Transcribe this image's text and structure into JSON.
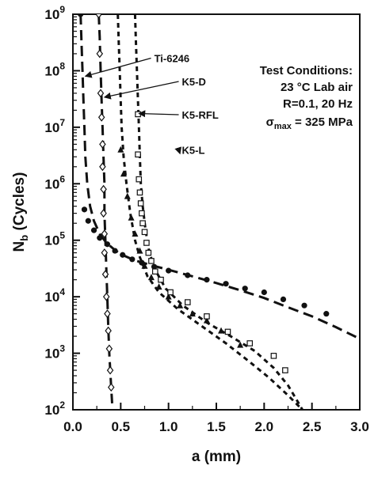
{
  "chart_data": {
    "type": "scatter",
    "xlabel": "a (mm)",
    "ylabel_main": "N",
    "ylabel_sub": "b",
    "ylabel_rest": " (Cycles)",
    "xlim": [
      0.0,
      3.0
    ],
    "ylim": [
      100,
      1000000000
    ],
    "yscale": "log",
    "grid": false,
    "x_ticks": [
      "0.0",
      "0.5",
      "1.0",
      "1.5",
      "2.0",
      "2.5",
      "3.0"
    ],
    "y_ticks": [
      {
        "value": 100,
        "mant": "10",
        "exp": "2"
      },
      {
        "value": 1000,
        "mant": "10",
        "exp": "3"
      },
      {
        "value": 10000,
        "mant": "10",
        "exp": "4"
      },
      {
        "value": 100000,
        "mant": "10",
        "exp": "5"
      },
      {
        "value": 1000000,
        "mant": "10",
        "exp": "6"
      },
      {
        "value": 10000000,
        "mant": "10",
        "exp": "7"
      },
      {
        "value": 100000000,
        "mant": "10",
        "exp": "8"
      },
      {
        "value": 1000000000,
        "mant": "10",
        "exp": "9"
      }
    ],
    "conditions": {
      "title": "Test Conditions:",
      "line1": "23 °C Lab air",
      "line2": "R=0.1, 20 Hz",
      "line3_prefix": "σ",
      "line3_sub": "max",
      "line3_rest": " = 325 MPa"
    },
    "series": [
      {
        "name": "Ti-6246",
        "marker": "circle",
        "line": "long-dash",
        "label_at": [
          0.85,
          142000000.0
        ],
        "arrow_to": [
          0.13,
          80000000.0
        ],
        "curve": [
          [
            0.08,
            1000000000.0
          ],
          [
            0.09,
            300000000.0
          ],
          [
            0.1,
            100000000.0
          ],
          [
            0.11,
            30000000.0
          ],
          [
            0.12,
            10000000.0
          ],
          [
            0.13,
            3000000.0
          ],
          [
            0.15,
            1000000.0
          ],
          [
            0.18,
            400000.0
          ],
          [
            0.22,
            220000.0
          ],
          [
            0.28,
            130000.0
          ],
          [
            0.35,
            90000.0
          ],
          [
            0.45,
            65000.0
          ],
          [
            0.55,
            52000.0
          ],
          [
            0.65,
            44000.0
          ],
          [
            0.8,
            37000.0
          ],
          [
            1.0,
            30000.0
          ],
          [
            1.25,
            23000.0
          ],
          [
            1.5,
            17500.0
          ],
          [
            1.75,
            13000.0
          ],
          [
            2.0,
            9500.0
          ],
          [
            2.25,
            6500.0
          ],
          [
            2.5,
            4500.0
          ],
          [
            2.75,
            2900.0
          ],
          [
            3.0,
            1800.0
          ]
        ],
        "points": [
          [
            0.08,
            1000000000.0
          ],
          [
            0.12,
            350000.0
          ],
          [
            0.16,
            220000.0
          ],
          [
            0.22,
            150000.0
          ],
          [
            0.28,
            110000.0
          ],
          [
            0.36,
            85000.0
          ],
          [
            0.44,
            65000.0
          ],
          [
            0.52,
            55000.0
          ],
          [
            0.62,
            46000.0
          ],
          [
            0.72,
            40000.0
          ],
          [
            0.85,
            34000.0
          ],
          [
            1.0,
            29000.0
          ],
          [
            1.2,
            24000.0
          ],
          [
            1.4,
            20000.0
          ],
          [
            1.6,
            17000.0
          ],
          [
            1.8,
            14000.0
          ],
          [
            2.0,
            12000.0
          ],
          [
            2.2,
            9000.0
          ],
          [
            2.42,
            7000.0
          ],
          [
            2.65,
            5000.0
          ]
        ]
      },
      {
        "name": "K5-D",
        "marker": "diamond",
        "line": "long-dash",
        "label_at": [
          1.14,
          55000000.0
        ],
        "arrow_to": [
          0.33,
          34000000.0
        ],
        "curve": [
          [
            0.27,
            1000000000.0
          ],
          [
            0.28,
            400000000.0
          ],
          [
            0.29,
            100000000.0
          ],
          [
            0.3,
            30000000.0
          ],
          [
            0.31,
            10000000.0
          ],
          [
            0.32,
            3000000.0
          ],
          [
            0.33,
            1000000.0
          ],
          [
            0.33,
            300000.0
          ],
          [
            0.34,
            100000.0
          ],
          [
            0.35,
            30000.0
          ],
          [
            0.36,
            10000.0
          ],
          [
            0.37,
            3000.0
          ],
          [
            0.38,
            1000.0
          ],
          [
            0.4,
            250.0
          ],
          [
            0.41,
            130.0
          ]
        ],
        "points": [
          [
            0.27,
            1000000000.0
          ],
          [
            0.28,
            200000000.0
          ],
          [
            0.29,
            40000000.0
          ],
          [
            0.3,
            15000000.0
          ],
          [
            0.31,
            5000000.0
          ],
          [
            0.31,
            2000000.0
          ],
          [
            0.32,
            800000.0
          ],
          [
            0.32,
            300000.0
          ],
          [
            0.33,
            130000.0
          ],
          [
            0.33,
            60000.0
          ],
          [
            0.34,
            25000.0
          ],
          [
            0.35,
            10000.0
          ],
          [
            0.36,
            5000.0
          ],
          [
            0.37,
            2500.0
          ],
          [
            0.38,
            1200.0
          ],
          [
            0.39,
            500.0
          ],
          [
            0.4,
            250.0
          ]
        ]
      },
      {
        "name": "K5-RFL",
        "marker": "triangle",
        "line": "short-dash",
        "label_at": [
          1.14,
          14200000.0
        ],
        "arrow_to": [
          0.69,
          17500000.0
        ],
        "curve": [
          [
            0.47,
            1000000000.0
          ],
          [
            0.48,
            300000000.0
          ],
          [
            0.49,
            100000000.0
          ],
          [
            0.5,
            30000000.0
          ],
          [
            0.51,
            10000000.0
          ],
          [
            0.53,
            3000000.0
          ],
          [
            0.56,
            1000000.0
          ],
          [
            0.6,
            300000.0
          ],
          [
            0.65,
            100000.0
          ],
          [
            0.7,
            50000.0
          ],
          [
            0.78,
            23000.0
          ],
          [
            0.9,
            12000.0
          ],
          [
            1.1,
            6000.0
          ],
          [
            1.35,
            3000.0
          ],
          [
            1.6,
            1500.0
          ],
          [
            1.85,
            700.0
          ],
          [
            2.05,
            370.0
          ],
          [
            2.25,
            180.0
          ],
          [
            2.4,
            100.0
          ]
        ],
        "points": [
          [
            0.5,
            4000000.0
          ],
          [
            0.53,
            1500000.0
          ],
          [
            0.57,
            600000.0
          ],
          [
            0.61,
            250000.0
          ],
          [
            0.65,
            130000.0
          ],
          [
            0.7,
            65000.0
          ],
          [
            0.75,
            35000.0
          ],
          [
            0.82,
            22000.0
          ],
          [
            0.9,
            15000.0
          ],
          [
            1.0,
            10000.0
          ],
          [
            1.12,
            7000.0
          ],
          [
            1.25,
            5000.0
          ],
          [
            1.4,
            3800.0
          ],
          [
            1.55,
            2500.0
          ],
          [
            1.75,
            1400.0
          ]
        ]
      },
      {
        "name": "K5-L",
        "marker": "square",
        "line": "short-dash",
        "label_at": [
          1.14,
          3400000.0
        ],
        "arrow_to": [
          1.12,
          3400000.0
        ],
        "curve": [
          [
            0.65,
            1000000000.0
          ],
          [
            0.66,
            300000000.0
          ],
          [
            0.67,
            100000000.0
          ],
          [
            0.68,
            30000000.0
          ],
          [
            0.69,
            10000000.0
          ],
          [
            0.7,
            3000000.0
          ],
          [
            0.71,
            1000000.0
          ],
          [
            0.73,
            400000.0
          ],
          [
            0.76,
            150000.0
          ],
          [
            0.8,
            60000.0
          ],
          [
            0.87,
            28000.0
          ],
          [
            0.97,
            14000.0
          ],
          [
            1.15,
            7000.0
          ],
          [
            1.4,
            3500.0
          ],
          [
            1.65,
            2000.0
          ],
          [
            1.9,
            1100.0
          ],
          [
            2.1,
            550.0
          ],
          [
            2.25,
            270.0
          ],
          [
            2.35,
            140.0
          ],
          [
            2.4,
            100.0
          ]
        ],
        "points": [
          [
            0.68,
            17000000.0
          ],
          [
            0.68,
            3300000.0
          ],
          [
            0.69,
            1200000.0
          ],
          [
            0.7,
            700000.0
          ],
          [
            0.71,
            450000.0
          ],
          [
            0.72,
            300000.0
          ],
          [
            0.73,
            200000.0
          ],
          [
            0.75,
            140000.0
          ],
          [
            0.77,
            90000.0
          ],
          [
            0.79,
            60000.0
          ],
          [
            0.82,
            43000.0
          ],
          [
            0.86,
            28000.0
          ],
          [
            0.92,
            20000.0
          ],
          [
            1.02,
            12000.0
          ],
          [
            1.2,
            8000.0
          ],
          [
            1.4,
            4500.0
          ],
          [
            1.62,
            2400.0
          ],
          [
            1.85,
            1500.0
          ],
          [
            2.1,
            900.0
          ],
          [
            2.22,
            500.0
          ]
        ]
      }
    ]
  }
}
